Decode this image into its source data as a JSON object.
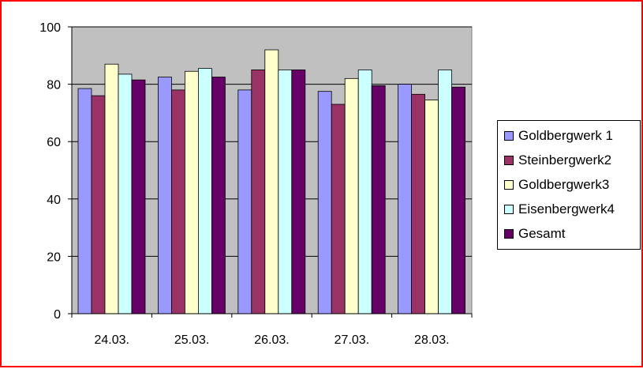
{
  "chart_data": {
    "type": "bar",
    "categories": [
      "24.03.",
      "25.03.",
      "26.03.",
      "27.03.",
      "28.03."
    ],
    "series": [
      {
        "name": "Goldbergwerk 1",
        "color": "#9999ff",
        "values": [
          78.5,
          82.5,
          78,
          77.5,
          80
        ]
      },
      {
        "name": "Steinbergwerk2",
        "color": "#993366",
        "values": [
          76,
          78,
          85,
          73,
          76.5
        ]
      },
      {
        "name": "Goldbergwerk3",
        "color": "#ffffcc",
        "values": [
          87,
          84.5,
          92,
          82,
          74.5
        ]
      },
      {
        "name": "Eisenbergwerk4",
        "color": "#ccffff",
        "values": [
          83.5,
          85.5,
          85,
          85,
          85
        ]
      },
      {
        "name": "Gesamt",
        "color": "#660066",
        "values": [
          81.5,
          82.5,
          85,
          79.5,
          79
        ]
      }
    ],
    "y_ticks": [
      "0",
      "20",
      "40",
      "60",
      "80",
      "100"
    ],
    "ylim": [
      0,
      100
    ],
    "grid": true,
    "plot_background": "#c0c0c0",
    "legend_position": "right"
  }
}
